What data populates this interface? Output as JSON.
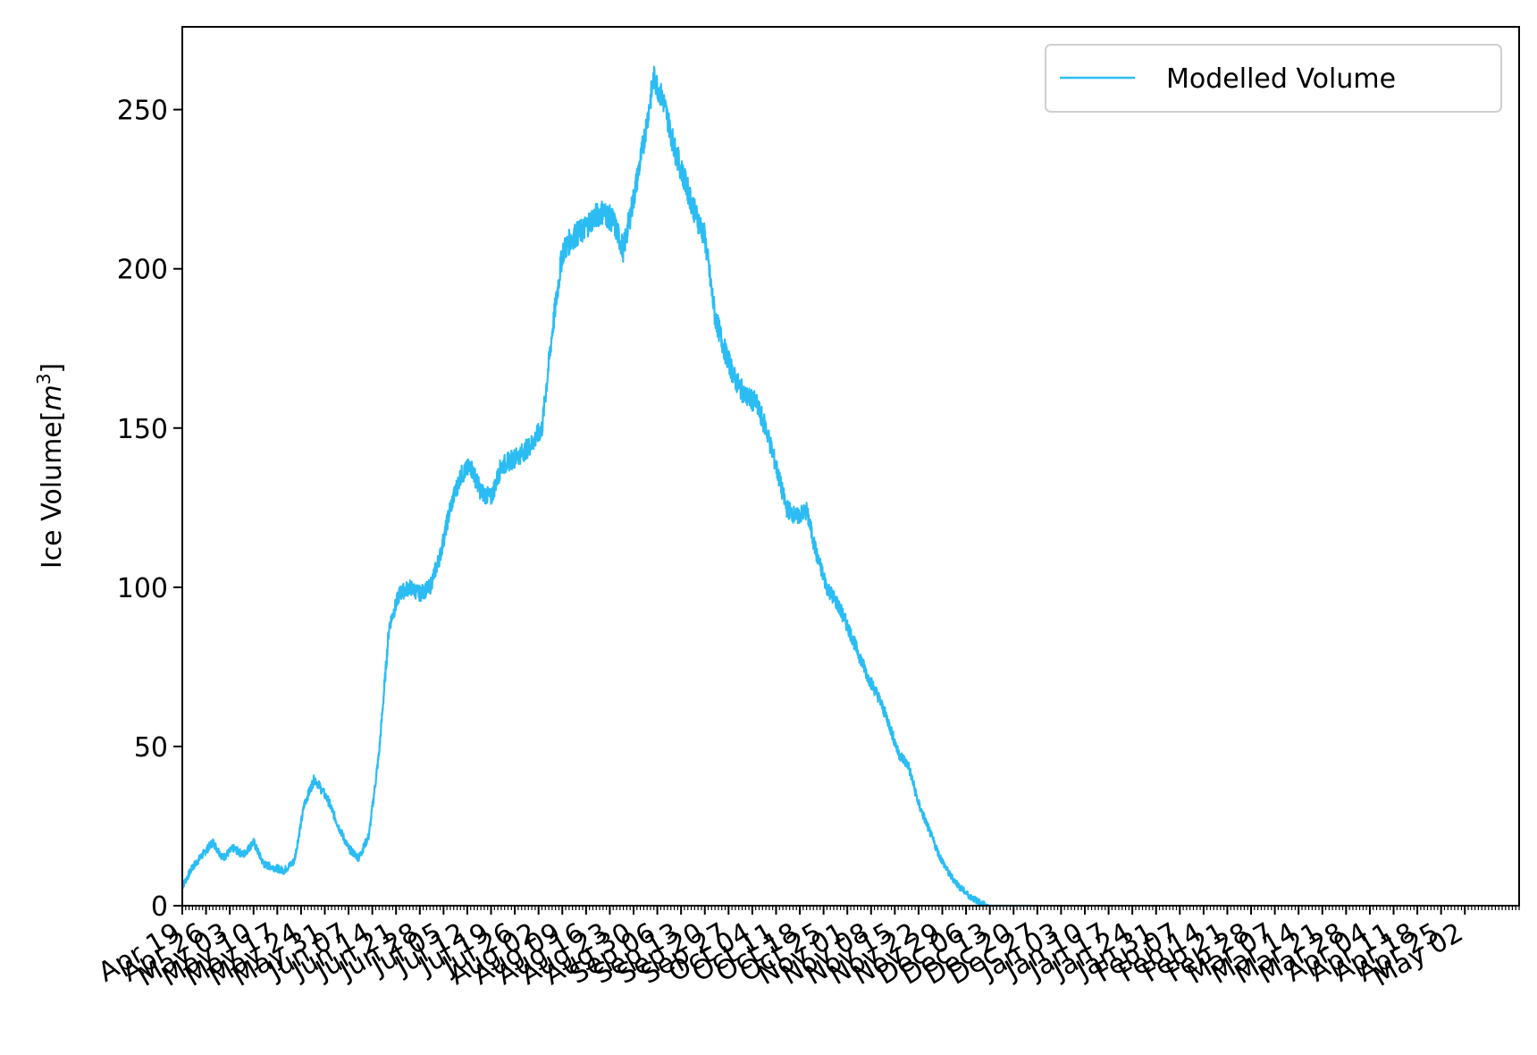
{
  "chart_data": {
    "type": "line",
    "title": "",
    "xlabel": "",
    "ylabel": "Ice Volume[m³]",
    "ylabel_parts": {
      "main": "Ice Volume[",
      "sym": "m",
      "sup": "3",
      "end": "]"
    },
    "x_axis_kind": "date",
    "x_range": [
      "2019-04-19",
      "2020-05-17"
    ],
    "ylim": [
      0,
      276
    ],
    "yticks": [
      0,
      50,
      100,
      150,
      200,
      250
    ],
    "x_tick_labels": [
      "Apr 19",
      "Apr 26",
      "May 03",
      "May 10",
      "May 17",
      "May 24",
      "May 31",
      "Jun 07",
      "Jun 14",
      "Jun 21",
      "Jun 28",
      "Jul 05",
      "Jul 12",
      "Jul 19",
      "Jul 26",
      "Aug 02",
      "Aug 09",
      "Aug 16",
      "Aug 23",
      "Aug 30",
      "Sep 06",
      "Sep 13",
      "Sep 20",
      "Sep 27",
      "Oct 04",
      "Oct 11",
      "Oct 18",
      "Oct 25",
      "Nov 01",
      "Nov 08",
      "Nov 15",
      "Nov 22",
      "Nov 29",
      "Dec 06",
      "Dec 13",
      "Dec 20",
      "Dec 27",
      "Jan 03",
      "Jan 10",
      "Jan 17",
      "Jan 24",
      "Jan 31",
      "Feb 07",
      "Feb 14",
      "Feb 21",
      "Feb 28",
      "Mar 07",
      "Mar 14",
      "Mar 21",
      "Mar 28",
      "Apr 04",
      "Apr 11",
      "Apr 18",
      "Apr 25",
      "May 02"
    ],
    "grid": false,
    "legend_position": "top-right",
    "series": [
      {
        "name": "Modelled Volume",
        "color": "#2bbcf4",
        "x": [
          "2019-04-19",
          "2019-04-22",
          "2019-04-25",
          "2019-04-28",
          "2019-05-01",
          "2019-05-04",
          "2019-05-07",
          "2019-05-10",
          "2019-05-13",
          "2019-05-16",
          "2019-05-19",
          "2019-05-22",
          "2019-05-25",
          "2019-05-28",
          "2019-06-01",
          "2019-06-04",
          "2019-06-07",
          "2019-06-10",
          "2019-06-13",
          "2019-06-16",
          "2019-06-19",
          "2019-06-22",
          "2019-06-25",
          "2019-06-28",
          "2019-07-01",
          "2019-07-04",
          "2019-07-07",
          "2019-07-10",
          "2019-07-13",
          "2019-07-16",
          "2019-07-19",
          "2019-07-22",
          "2019-07-25",
          "2019-07-28",
          "2019-07-31",
          "2019-08-03",
          "2019-08-06",
          "2019-08-09",
          "2019-08-12",
          "2019-08-15",
          "2019-08-18",
          "2019-08-21",
          "2019-08-24",
          "2019-08-27",
          "2019-08-30",
          "2019-09-02",
          "2019-09-05",
          "2019-09-08",
          "2019-09-11",
          "2019-09-14",
          "2019-09-17",
          "2019-09-20",
          "2019-09-23",
          "2019-09-26",
          "2019-09-29",
          "2019-10-02",
          "2019-10-05",
          "2019-10-08",
          "2019-10-11",
          "2019-10-14",
          "2019-10-17",
          "2019-10-20",
          "2019-10-23",
          "2019-10-26",
          "2019-10-29",
          "2019-11-01",
          "2019-11-04",
          "2019-11-07",
          "2019-11-10",
          "2019-11-13",
          "2019-11-16",
          "2019-11-19",
          "2019-11-22",
          "2019-11-25",
          "2019-11-28",
          "2019-12-01",
          "2019-12-04",
          "2019-12-07",
          "2019-12-10",
          "2019-12-13",
          "2019-12-16",
          "2019-12-19",
          "2019-12-22",
          "2019-12-25"
        ],
        "y": [
          6,
          12,
          16,
          20,
          15,
          18,
          16,
          20,
          13,
          12,
          11,
          14,
          32,
          40,
          33,
          25,
          18,
          15,
          22,
          48,
          88,
          98,
          100,
          98,
          100,
          110,
          125,
          135,
          138,
          130,
          128,
          138,
          140,
          142,
          145,
          150,
          180,
          205,
          210,
          212,
          216,
          218,
          215,
          206,
          222,
          240,
          260,
          252,
          238,
          228,
          218,
          210,
          185,
          174,
          165,
          160,
          158,
          150,
          138,
          125,
          122,
          124,
          110,
          100,
          95,
          88,
          80,
          72,
          66,
          58,
          48,
          44,
          32,
          24,
          16,
          10,
          6,
          3,
          1,
          0,
          0,
          0,
          0,
          0
        ]
      }
    ]
  }
}
